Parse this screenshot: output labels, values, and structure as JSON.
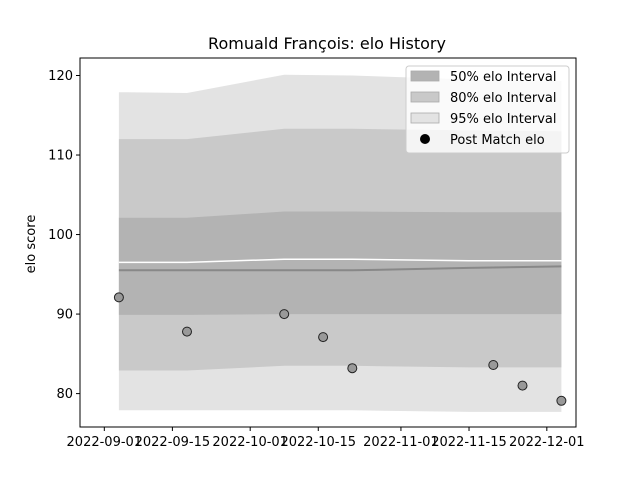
{
  "chart_data": {
    "type": "line",
    "title": "Romuald François: elo History",
    "xlabel": "",
    "ylabel": "elo score",
    "x_range": [
      "2022-08-27",
      "2022-12-07"
    ],
    "y_range": [
      75.8,
      122.2
    ],
    "x_ticks": [
      "2022-09-01",
      "2022-09-15",
      "2022-10-01",
      "2022-10-15",
      "2022-11-01",
      "2022-11-15",
      "2022-12-01"
    ],
    "y_ticks": [
      80,
      90,
      100,
      110,
      120
    ],
    "grid": false,
    "legend_position": "top-right",
    "legend": [
      "50% elo Interval",
      "80% elo Interval",
      "95% elo Interval",
      "Post Match elo"
    ],
    "band_dates": [
      "2022-09-04",
      "2022-09-18",
      "2022-10-08",
      "2022-10-22",
      "2022-11-15",
      "2022-12-04"
    ],
    "bands": {
      "p95": {
        "upper": [
          117.9,
          117.8,
          120.1,
          120.0,
          119.5,
          119.3
        ],
        "lower": [
          77.9,
          77.9,
          77.9,
          77.9,
          77.7,
          77.7
        ]
      },
      "p80": {
        "upper": [
          112.0,
          112.0,
          113.3,
          113.3,
          113.1,
          113.0
        ],
        "lower": [
          82.9,
          82.9,
          83.5,
          83.5,
          83.3,
          83.3
        ]
      },
      "p50": {
        "upper": [
          102.1,
          102.1,
          102.9,
          102.9,
          102.8,
          102.8
        ],
        "lower": [
          89.9,
          89.9,
          90.0,
          90.0,
          90.0,
          90.0
        ]
      }
    },
    "mean_line": {
      "dates": [
        "2022-09-04",
        "2022-09-18",
        "2022-10-08",
        "2022-10-22",
        "2022-11-15",
        "2022-12-04"
      ],
      "values": [
        95.5,
        95.5,
        95.5,
        95.5,
        95.8,
        96.0
      ]
    },
    "upper_white_line": {
      "dates": [
        "2022-09-04",
        "2022-09-18",
        "2022-10-08",
        "2022-10-22",
        "2022-11-15",
        "2022-12-04"
      ],
      "values": [
        96.5,
        96.5,
        96.9,
        96.9,
        96.7,
        96.7
      ]
    },
    "points": [
      {
        "x": "2022-09-04",
        "y": 92.1
      },
      {
        "x": "2022-09-18",
        "y": 87.8
      },
      {
        "x": "2022-10-08",
        "y": 90.0
      },
      {
        "x": "2022-10-16",
        "y": 87.1
      },
      {
        "x": "2022-10-22",
        "y": 83.2
      },
      {
        "x": "2022-11-20",
        "y": 83.6
      },
      {
        "x": "2022-11-26",
        "y": 81.0
      },
      {
        "x": "2022-12-04",
        "y": 79.1
      }
    ],
    "colors": {
      "p50": "#b3b3b3",
      "p80": "#c9c9c9",
      "p95": "#e3e3e3",
      "mean_line": "#888888",
      "white_line": "#ffffff",
      "point_fill": "#999999",
      "point_edge": "#222222",
      "legend_marker": "#000000"
    }
  }
}
